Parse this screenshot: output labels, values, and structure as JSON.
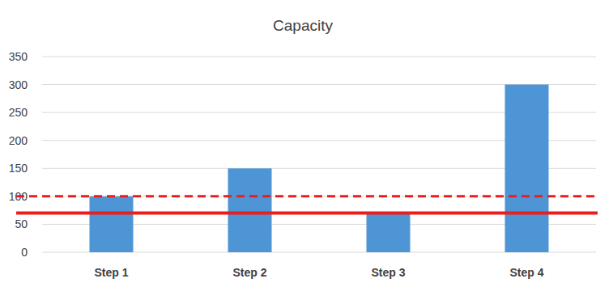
{
  "chart_data": {
    "type": "bar",
    "title": "Capacity",
    "categories": [
      "Step 1",
      "Step 2",
      "Step 3",
      "Step 4"
    ],
    "values": [
      100,
      150,
      70,
      300
    ],
    "color": "#4e95d6",
    "ylim": [
      0,
      350
    ],
    "yticks": [
      0,
      50,
      100,
      150,
      200,
      250,
      300,
      350
    ],
    "grid": true,
    "reference_lines": [
      {
        "value": 100,
        "line_style": "dashed",
        "color": "#ee1c1c"
      },
      {
        "value": 70,
        "line_style": "solid",
        "color": "#ee1c1c"
      }
    ]
  }
}
